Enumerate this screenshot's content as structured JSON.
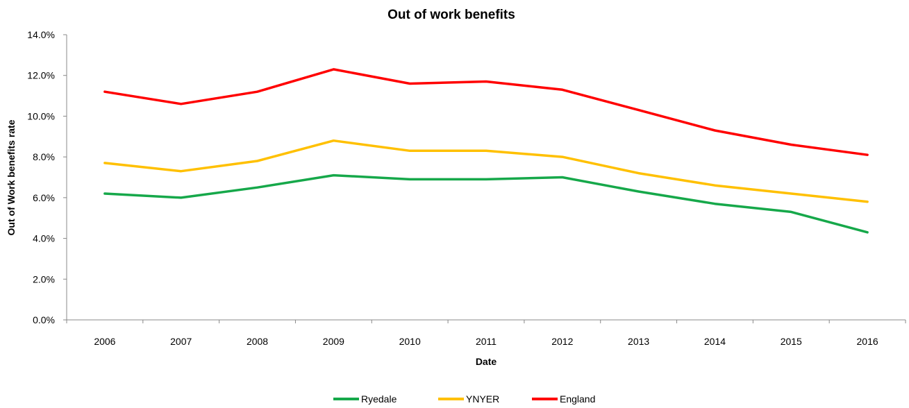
{
  "chart_data": {
    "type": "line",
    "title": "Out of work benefits",
    "xlabel": "Date",
    "ylabel": "Out of Work benefits rate",
    "categories": [
      "2006",
      "2007",
      "2008",
      "2009",
      "2010",
      "2011",
      "2012",
      "2013",
      "2014",
      "2015",
      "2016"
    ],
    "y_ticks": [
      "0.0%",
      "2.0%",
      "4.0%",
      "6.0%",
      "8.0%",
      "10.0%",
      "12.0%",
      "14.0%"
    ],
    "ylim": [
      0,
      14
    ],
    "grid": false,
    "legend_position": "bottom",
    "series": [
      {
        "name": "Ryedale",
        "color": "#16a84a",
        "values": [
          6.2,
          6.0,
          6.5,
          7.1,
          6.9,
          6.9,
          7.0,
          6.3,
          5.7,
          5.3,
          4.3
        ]
      },
      {
        "name": "YNYER",
        "color": "#ffc000",
        "values": [
          7.7,
          7.3,
          7.8,
          8.8,
          8.3,
          8.3,
          8.0,
          7.2,
          6.6,
          6.2,
          5.8
        ]
      },
      {
        "name": "England",
        "color": "#ff0000",
        "values": [
          11.2,
          10.6,
          11.2,
          12.3,
          11.6,
          11.7,
          11.3,
          10.3,
          9.3,
          8.6,
          8.1
        ]
      }
    ]
  }
}
